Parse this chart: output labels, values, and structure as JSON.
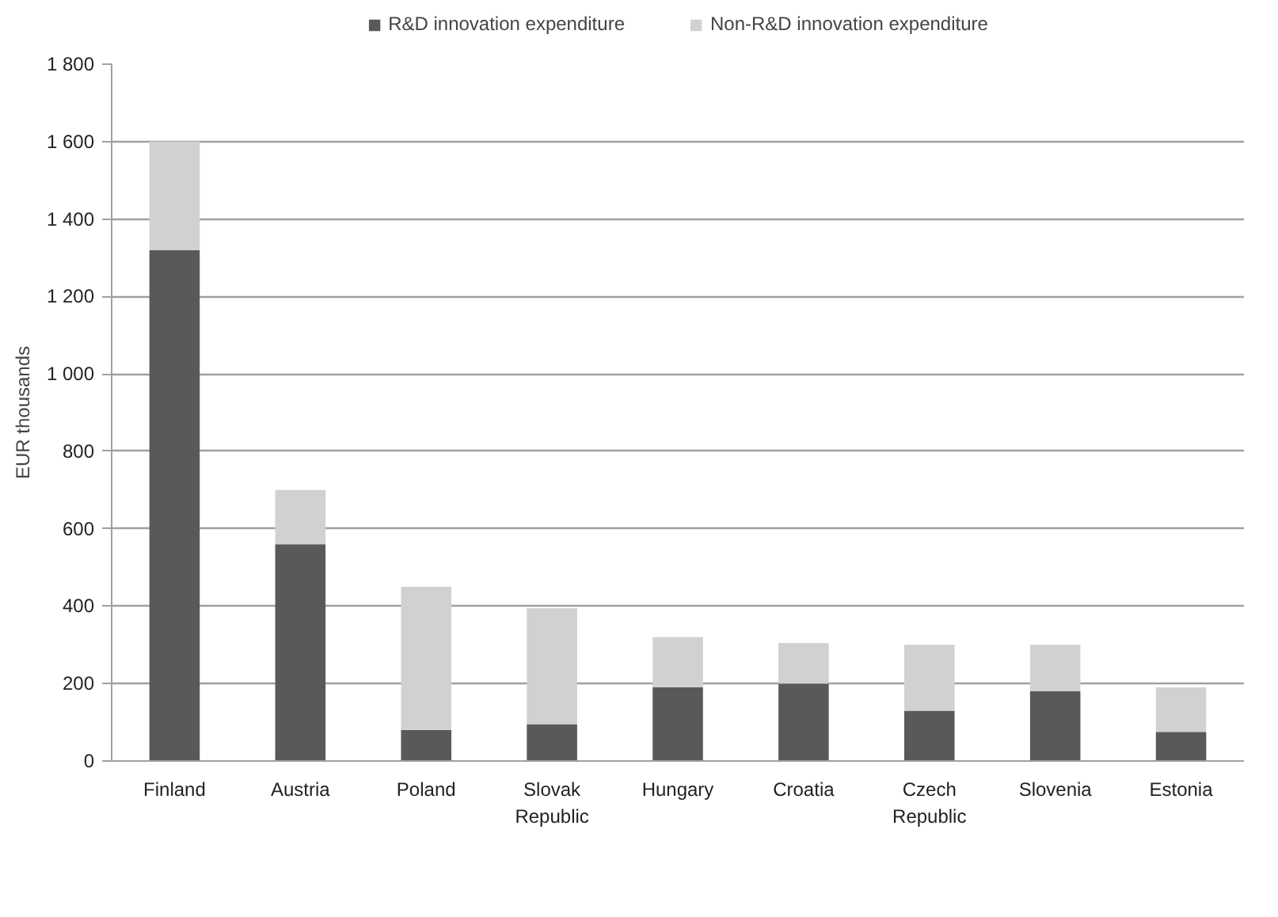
{
  "chart_data": {
    "type": "bar",
    "stacked": true,
    "ylabel": "EUR thousands",
    "categories": [
      "Finland",
      "Austria",
      "Poland",
      "Slovak Republic",
      "Hungary",
      "Croatia",
      "Czech Republic",
      "Slovenia",
      "Estonia"
    ],
    "series": [
      {
        "name": "R&D innovation expenditure",
        "color": "#58595b",
        "values": [
          1320,
          560,
          80,
          95,
          190,
          200,
          130,
          180,
          75
        ]
      },
      {
        "name": "Non-R&D innovation expenditure",
        "color": "#d0d1d3",
        "values": [
          280,
          140,
          370,
          300,
          130,
          105,
          170,
          120,
          115
        ]
      }
    ],
    "ylim": [
      0,
      1800
    ],
    "yticks": [
      0,
      200,
      400,
      600,
      800,
      {
        "value": 1000,
        "label": "1 000"
      },
      {
        "value": 1200,
        "label": "1 200"
      },
      {
        "value": 1400,
        "label": "1 400"
      },
      {
        "value": 1600,
        "label": "1 600"
      },
      {
        "value": 1800,
        "label": "1 800"
      }
    ],
    "grid": "y",
    "legend": "top"
  }
}
